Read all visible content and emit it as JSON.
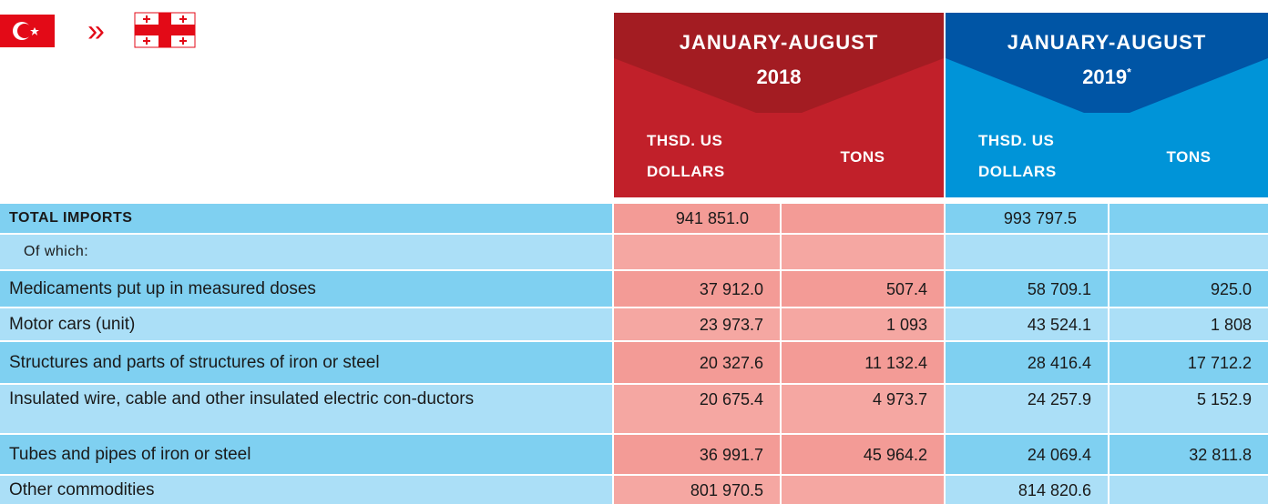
{
  "header": {
    "periods": [
      {
        "title": "JANUARY-AUGUST",
        "year": "2018",
        "columns": [
          "THSD. US DOLLARS",
          "TONS"
        ]
      },
      {
        "title": "JANUARY-AUGUST",
        "year": "2019",
        "mark": "*",
        "columns": [
          "THSD. US DOLLARS",
          "TONS"
        ]
      }
    ]
  },
  "table": {
    "rows": [
      [
        "TOTAL IMPORTS",
        "941 851.0",
        "",
        "993 797.5",
        ""
      ],
      [
        "Of which:",
        "",
        "",
        "",
        ""
      ],
      [
        "Medicaments put up in measured doses",
        "37 912.0",
        "507.4",
        "58 709.1",
        "925.0"
      ],
      [
        "Motor cars (unit)",
        "23 973.7",
        "1 093",
        "43 524.1",
        "1 808"
      ],
      [
        "Structures and parts of structures of iron or steel",
        "20 327.6",
        "11 132.4",
        "28 416.4",
        "17 712.2"
      ],
      [
        "Insulated wire, cable and other insulated electric con-ductors",
        "20 675.4",
        "4 973.7",
        "24 257.9",
        "5 152.9"
      ],
      [
        "Tubes and pipes of iron or steel",
        "36 991.7",
        "45 964.2",
        "24 069.4",
        "32 811.8"
      ],
      [
        "Other commodities",
        "801 970.5",
        "",
        "814 820.6",
        ""
      ]
    ]
  }
}
